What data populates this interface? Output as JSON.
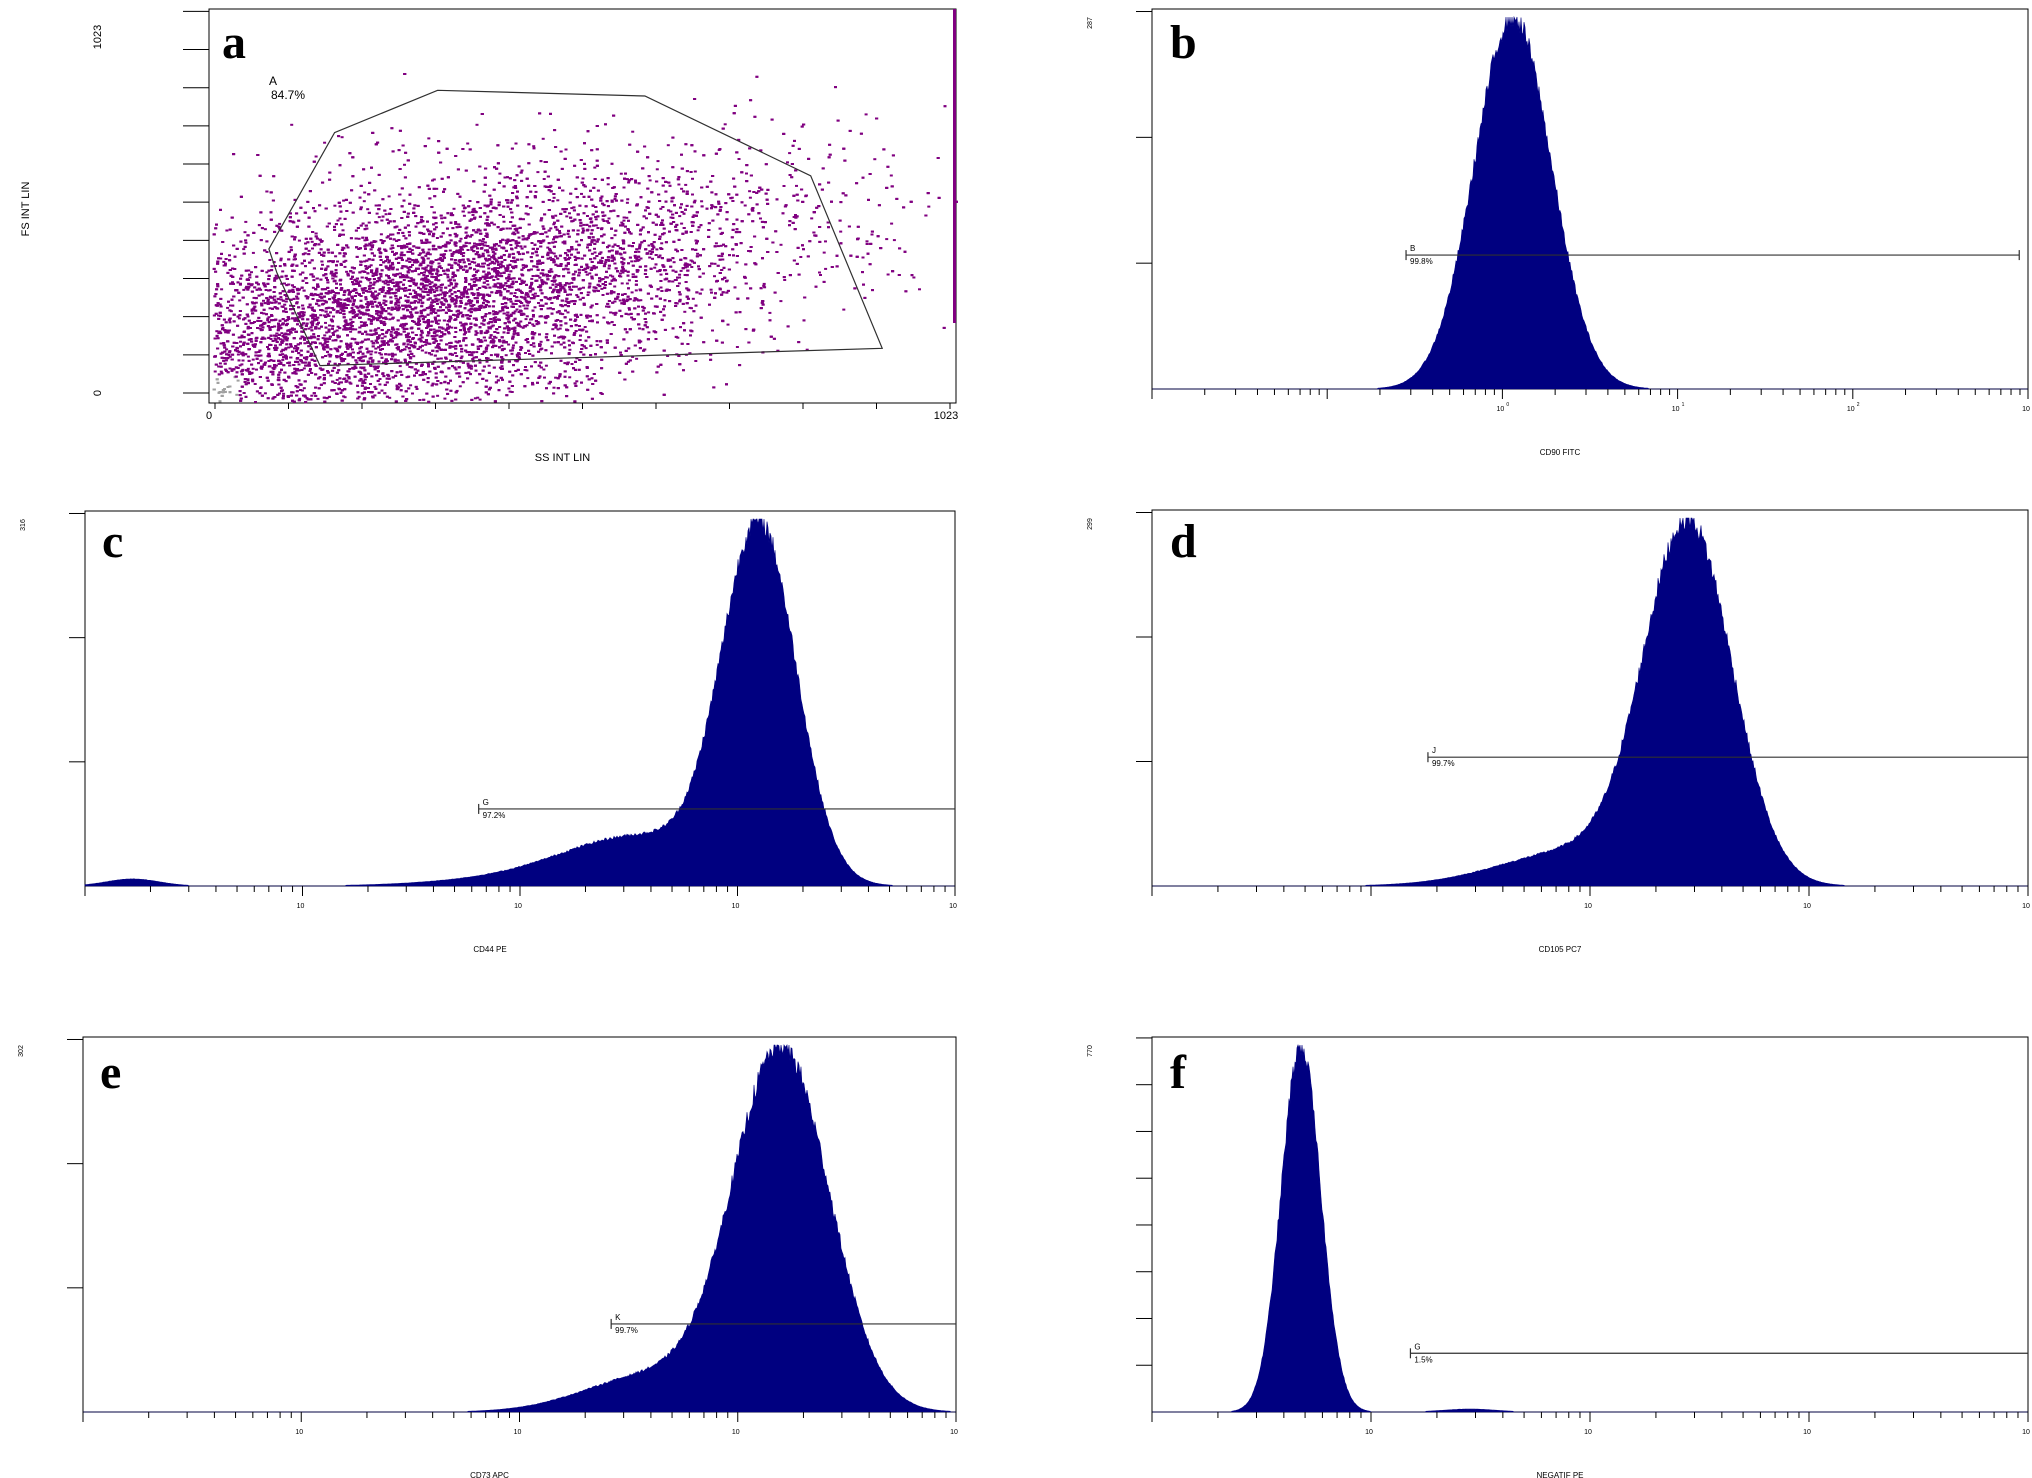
{
  "chart_data": [
    {
      "panel": "a",
      "type": "scatter",
      "xlabel": "SS INT LIN",
      "ylabel": "FS INT LIN",
      "xlim": [
        0,
        1023
      ],
      "ylim": [
        0,
        1023
      ],
      "x_tick_labels": [
        "0",
        "1023"
      ],
      "y_tick_labels": [
        "0",
        "1023"
      ],
      "density_center": [
        280,
        260
      ],
      "density_spread": [
        170,
        110
      ],
      "point_count": 14000,
      "dot_color": "#800080",
      "debris_color": "#a0a0a0",
      "gate": {
        "label": "A",
        "value": "84.7%",
        "polygon": [
          [
            82,
            400
          ],
          [
            172,
            702
          ],
          [
            313,
            812
          ],
          [
            597,
            797
          ],
          [
            824,
            590
          ],
          [
            922,
            142
          ],
          [
            152,
            97
          ],
          [
            93,
            338
          ]
        ]
      }
    },
    {
      "panel": "b",
      "type": "area",
      "xlabel": "CD90 FITC",
      "ymax_label": "287",
      "y_tick_count": 3,
      "x_decades": 5,
      "x_tick_labels": [
        "10",
        "10",
        "10",
        "10"
      ],
      "x_tick_exponents": [
        "0",
        "1",
        "2",
        "3"
      ],
      "peak_decade": 2.06,
      "peak_sigma": 0.22,
      "peak_height": 1.0,
      "fill_color": "#000080",
      "gate": {
        "label": "B",
        "value": "99.8%",
        "x_start_decade": 1.45,
        "x_end_decade": 4.95,
        "level": 0.36
      }
    },
    {
      "panel": "c",
      "type": "area",
      "xlabel": "CD44 PE",
      "ymax_label": "316",
      "y_tick_count": 3,
      "x_decades": 4,
      "x_tick_labels": [
        "10",
        "10",
        "10",
        "10"
      ],
      "peak_decade": 3.1,
      "peak_sigma": 0.17,
      "peak_height": 1.0,
      "shoulder": {
        "decade": 2.55,
        "sigma": 0.35,
        "height": 0.14
      },
      "tail": {
        "decade": 1.9,
        "sigma": 0.35,
        "height": 0.015
      },
      "bump": {
        "decade": 0.22,
        "sigma": 0.12,
        "height": 0.02
      },
      "fill_color": "#000080",
      "gate": {
        "label": "G",
        "value": "97.2%",
        "x_start_decade": 1.81,
        "x_end_decade": 4.0,
        "level": 0.21
      }
    },
    {
      "panel": "d",
      "type": "area",
      "xlabel": "CD105 PC7",
      "ymax_label": "299",
      "y_tick_count": 3,
      "x_decades": 4,
      "x_tick_labels": [
        "10",
        "10",
        "10"
      ],
      "peak_decade": 2.45,
      "peak_sigma": 0.2,
      "peak_height": 1.0,
      "shoulder": {
        "decade": 1.95,
        "sigma": 0.35,
        "height": 0.1
      },
      "fill_color": "#000080",
      "gate": {
        "label": "J",
        "value": "99.7%",
        "x_start_decade": 1.26,
        "x_end_decade": 4.0,
        "level": 0.35
      }
    },
    {
      "panel": "e",
      "type": "area",
      "xlabel": "CD73 APC",
      "ymax_label": "302",
      "y_tick_count": 3,
      "x_decades": 4,
      "x_tick_labels": [
        "10",
        "10",
        "10",
        "10"
      ],
      "peak_decade": 3.2,
      "peak_sigma": 0.22,
      "peak_height": 1.0,
      "shoulder": {
        "decade": 2.6,
        "sigma": 0.3,
        "height": 0.1
      },
      "fill_color": "#000080",
      "gate": {
        "label": "K",
        "value": "99.7%",
        "x_start_decade": 2.42,
        "x_end_decade": 4.0,
        "level": 0.24
      }
    },
    {
      "panel": "f",
      "type": "area",
      "xlabel": "NEGATIF PE",
      "ymax_label": "770",
      "y_tick_count": 8,
      "x_decades": 4,
      "x_tick_labels": [
        "10",
        "10",
        "10",
        "10"
      ],
      "peak_decade": 0.68,
      "peak_sigma": 0.09,
      "peak_height": 1.0,
      "bump": {
        "decade": 1.45,
        "sigma": 0.12,
        "height": 0.008
      },
      "fill_color": "#000080",
      "gate": {
        "label": "G",
        "value": "1.5%",
        "x_start_decade": 1.18,
        "x_end_decade": 4.0,
        "level": 0.16
      }
    }
  ]
}
